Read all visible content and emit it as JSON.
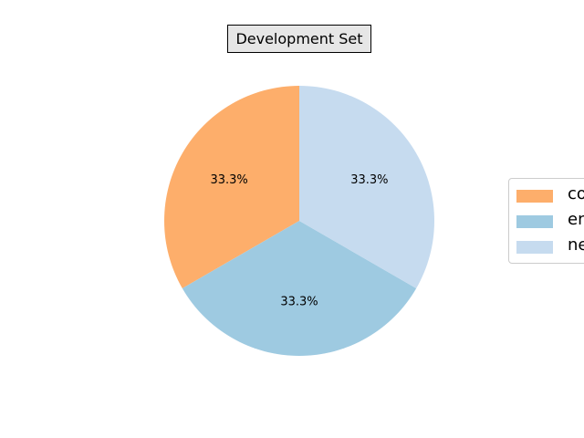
{
  "chart_data": {
    "type": "pie",
    "title": "Development Set",
    "categories": [
      "co",
      "en",
      "ne"
    ],
    "values": [
      33.3,
      33.3,
      33.3
    ],
    "slice_labels": [
      "33.3%",
      "33.3%",
      "33.3%"
    ],
    "colors": [
      "#fdae6b",
      "#9ecae1",
      "#c6dbef"
    ],
    "start_angle_deg": 90,
    "direction": "counterclockwise",
    "legend_placement": "center-right"
  }
}
